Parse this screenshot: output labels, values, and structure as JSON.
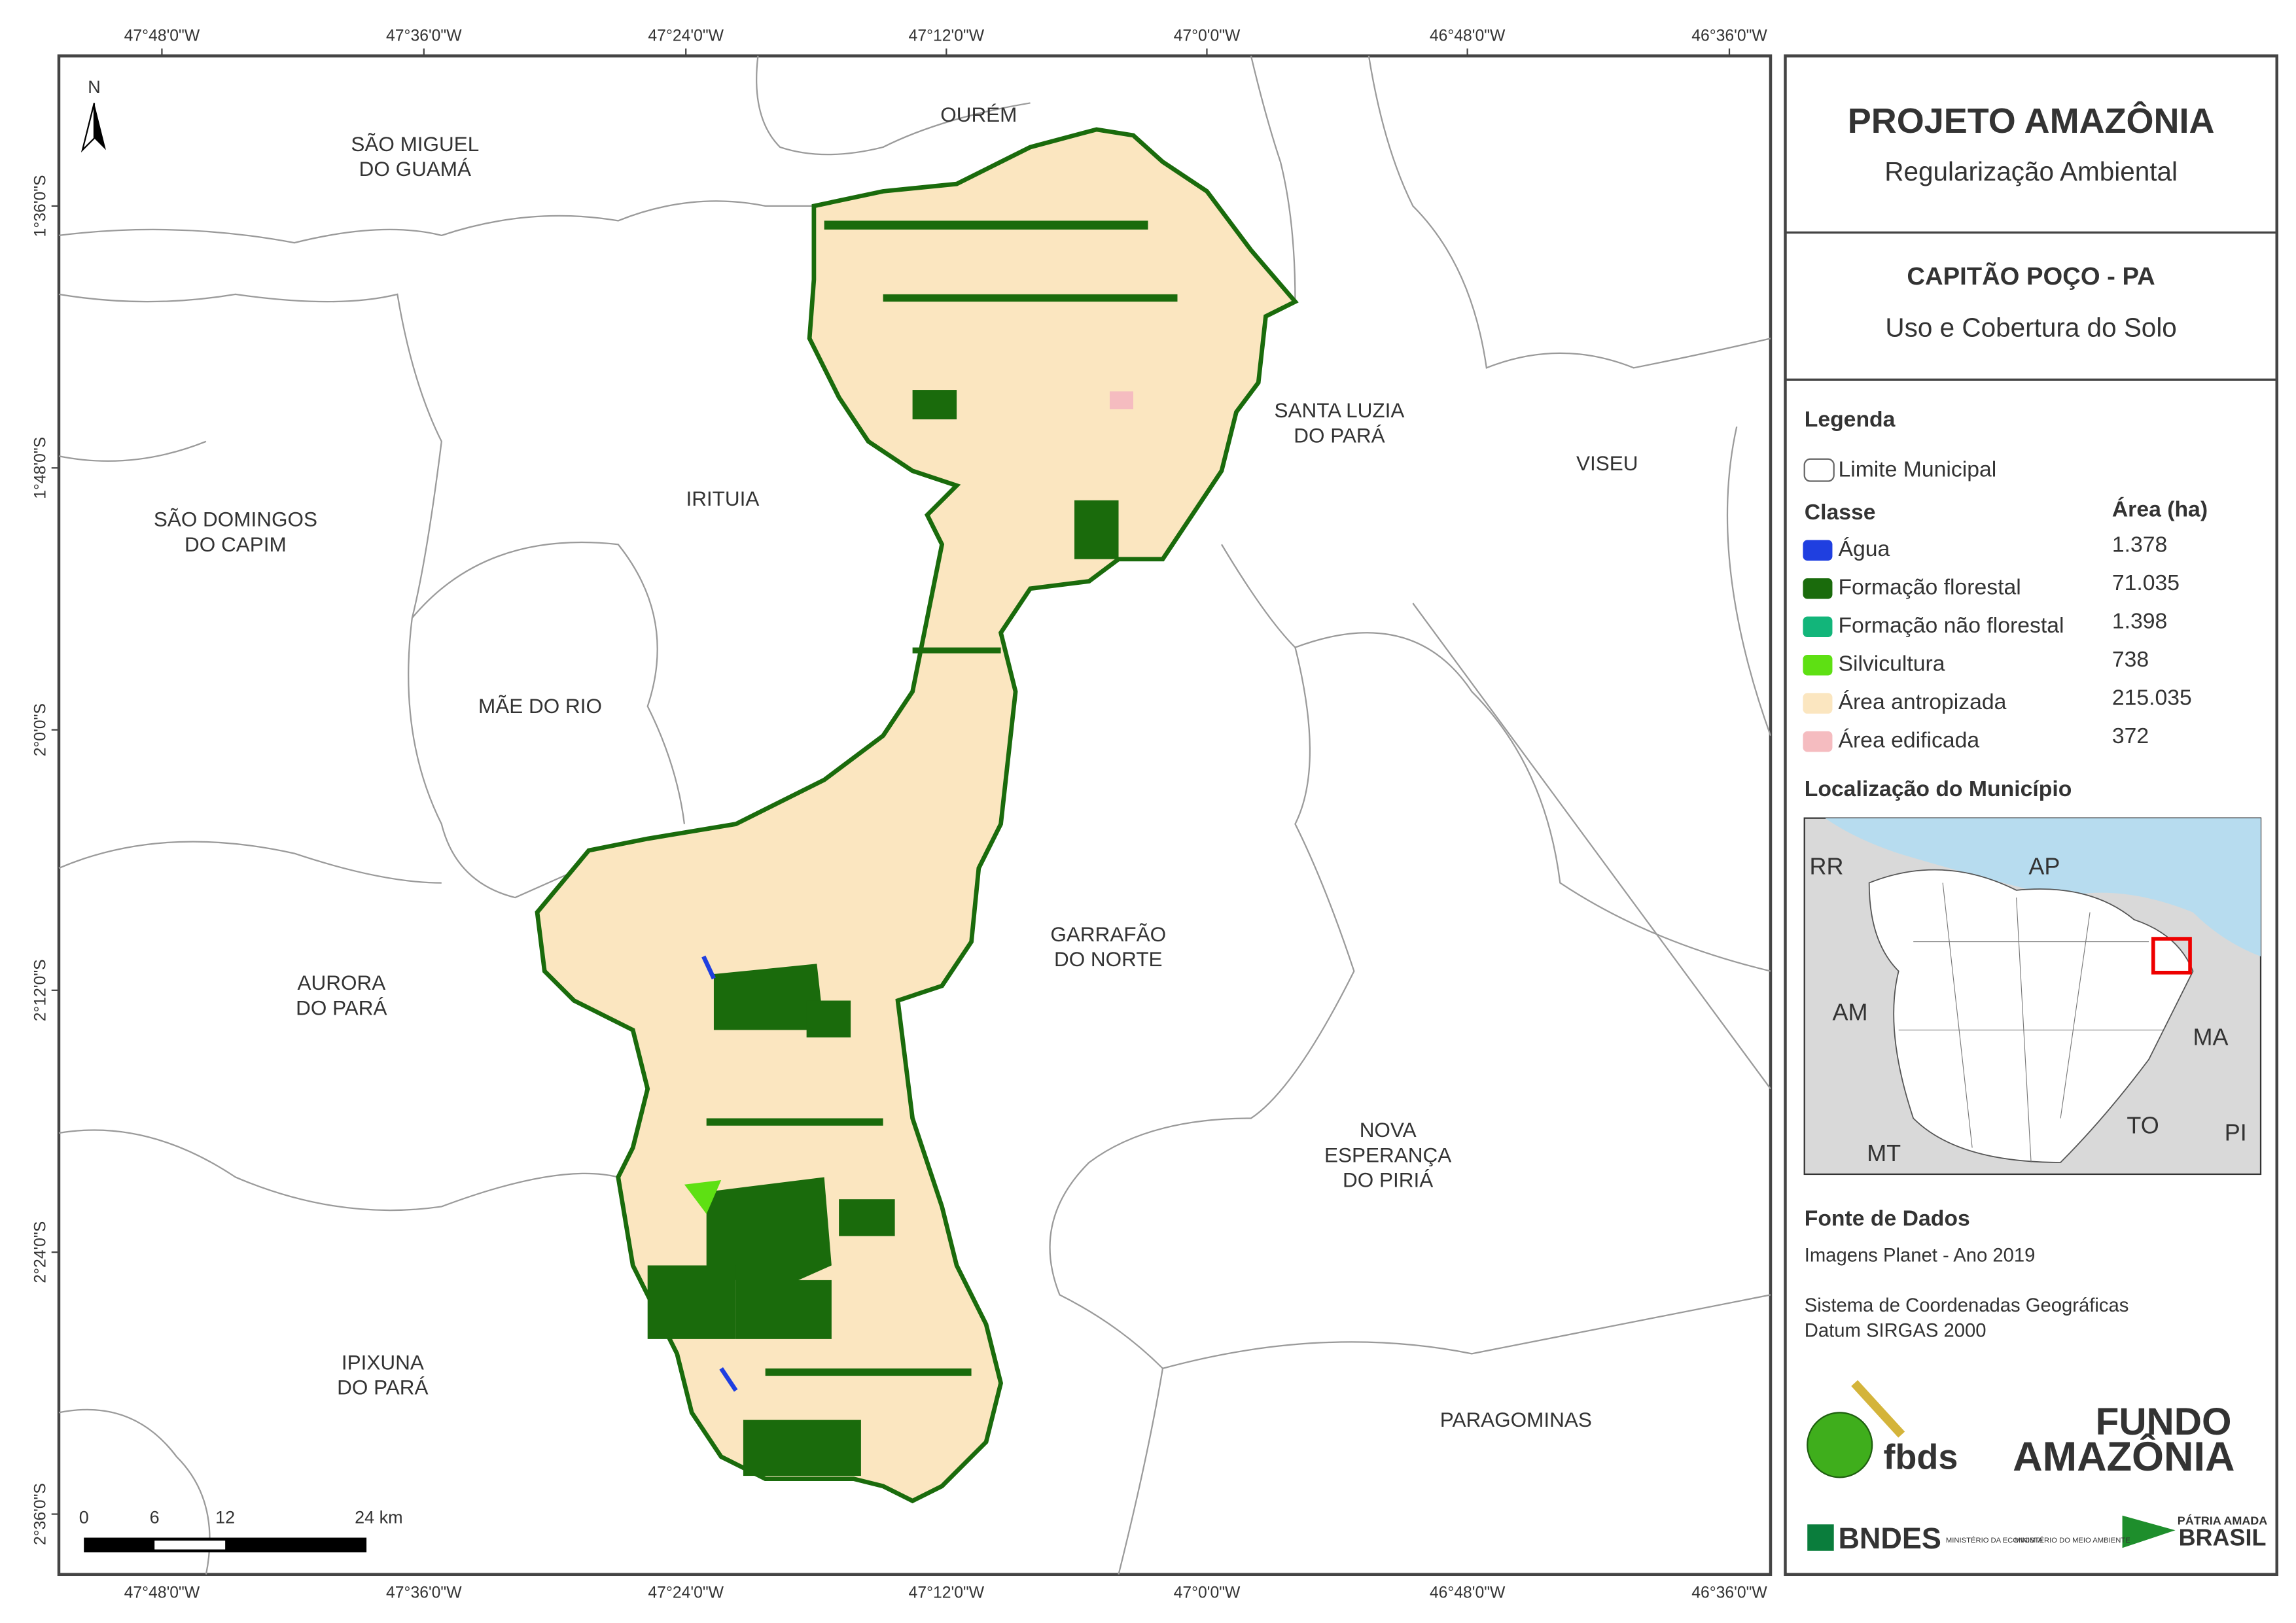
{
  "map": {
    "lon_labels": [
      "47°48'0\"W",
      "47°36'0\"W",
      "47°24'0\"W",
      "47°12'0\"W",
      "47°0'0\"W",
      "46°48'0\"W",
      "46°36'0\"W"
    ],
    "lat_labels": [
      "1°36'0\"S",
      "1°48'0\"S",
      "2°0'0\"S",
      "2°12'0\"S",
      "2°24'0\"S",
      "2°36'0\"S"
    ],
    "north": "N",
    "places": [
      {
        "lines": [
          "SÃO MIGUEL",
          "DO GUAMÁ"
        ]
      },
      {
        "lines": [
          "OURÉM"
        ]
      },
      {
        "lines": [
          "SÃO DOMINGOS",
          "DO CAPIM"
        ]
      },
      {
        "lines": [
          "IRITUIA"
        ]
      },
      {
        "lines": [
          "SANTA LUZIA",
          "DO PARÁ"
        ]
      },
      {
        "lines": [
          "VISEU"
        ]
      },
      {
        "lines": [
          "MÃE DO RIO"
        ]
      },
      {
        "lines": [
          "GARRAFÃO",
          "DO NORTE"
        ]
      },
      {
        "lines": [
          "AURORA",
          "DO PARÁ"
        ]
      },
      {
        "lines": [
          "NOVA",
          "ESPERANÇA",
          "DO PIRIÁ"
        ]
      },
      {
        "lines": [
          "IPIXUNA",
          "DO PARÁ"
        ]
      },
      {
        "lines": [
          "PARAGOMINAS"
        ]
      }
    ],
    "scale": [
      "0",
      "6",
      "12",
      "24 km"
    ]
  },
  "panel": {
    "title": "PROJETO AMAZÔNIA",
    "subtitle": "Regularização Ambiental",
    "municipality": "CAPITÃO POÇO - PA",
    "theme": "Uso e Cobertura do Solo",
    "legend": {
      "title": "Legenda",
      "boundary": "Limite Municipal",
      "class_header": "Classe",
      "area_header": "Área (ha)",
      "items": [
        {
          "label": "Água",
          "area": "1.378",
          "color": "#1f3fe0"
        },
        {
          "label": "Formação florestal",
          "area": "71.035",
          "color": "#1a6b0c"
        },
        {
          "label": "Formação não florestal",
          "area": "1.398",
          "color": "#12b57a"
        },
        {
          "label": "Silvicultura",
          "area": "738",
          "color": "#5ee013"
        },
        {
          "label": "Área antropizada",
          "area": "215.035",
          "color": "#fbe6c0"
        },
        {
          "label": "Área edificada",
          "area": "372",
          "color": "#f5bcc0"
        }
      ]
    },
    "location": {
      "title": "Localização do Município",
      "states": [
        "RR",
        "AP",
        "AM",
        "MA",
        "MT",
        "TO",
        "PI"
      ]
    },
    "sources": {
      "title": "Fonte de Dados",
      "lines": [
        "Imagens Planet - Ano 2019",
        "Sistema de Coordenadas Geográficas",
        "Datum SIRGAS 2000"
      ]
    },
    "logos": {
      "fbds": "fbds",
      "fundo": "FUNDO",
      "amazonia": "AMAZÔNIA",
      "bndes": "BNDES",
      "min1": "MINISTÉRIO DA ECONOMIA",
      "min2": "MINISTÉRIO DO MEIO AMBIENTE",
      "patria": "PÁTRIA AMADA",
      "brasil": "BRASIL"
    }
  }
}
